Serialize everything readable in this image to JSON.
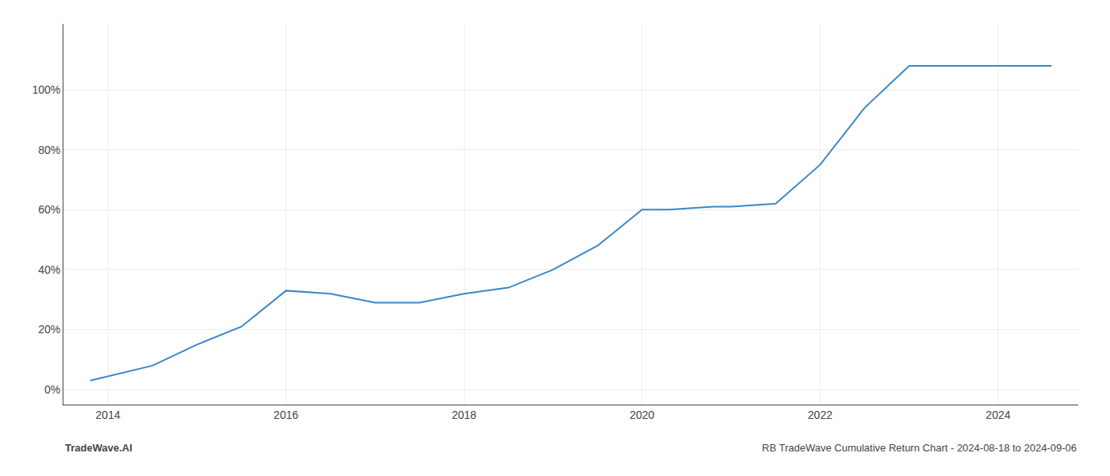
{
  "chart_data": {
    "type": "line",
    "x": [
      2013.8,
      2014.5,
      2015.0,
      2015.5,
      2016.0,
      2016.5,
      2017.0,
      2017.5,
      2018.0,
      2018.5,
      2019.0,
      2019.5,
      2020.0,
      2020.3,
      2020.8,
      2021.0,
      2021.5,
      2022.0,
      2022.5,
      2023.0,
      2023.5,
      2024.0,
      2024.6
    ],
    "values": [
      3,
      8,
      15,
      21,
      33,
      32,
      29,
      29,
      32,
      34,
      40,
      48,
      60,
      60,
      61,
      61,
      62,
      75,
      94,
      108,
      108,
      108,
      108
    ],
    "color": "#3a87c8",
    "xlim": [
      2013.5,
      2024.9
    ],
    "ylim": [
      -5,
      122
    ],
    "xticks": [
      2014,
      2016,
      2018,
      2020,
      2022,
      2024
    ],
    "yticks": [
      {
        "value": 0,
        "label": "0%"
      },
      {
        "value": 20,
        "label": "20%"
      },
      {
        "value": 40,
        "label": "40%"
      },
      {
        "value": 60,
        "label": "60%"
      },
      {
        "value": 80,
        "label": "80%"
      },
      {
        "value": 100,
        "label": "100%"
      }
    ],
    "grid": true,
    "annotations": [
      {
        "text": "TradeWave.AI"
      },
      {
        "text": "RB TradeWave Cumulative Return Chart - 2024-08-18 to 2024-09-06"
      }
    ]
  }
}
